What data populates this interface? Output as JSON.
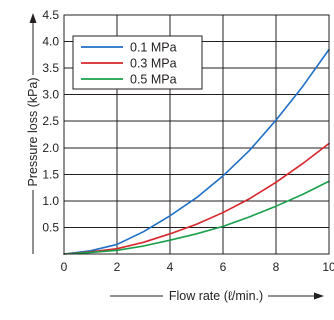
{
  "chart_data": {
    "type": "line",
    "xlabel": "Flow rate (ℓ/min.)",
    "ylabel": "Pressure loss (kPa)",
    "xlim": [
      0,
      10
    ],
    "ylim": [
      0,
      4.5
    ],
    "x_ticks": [
      0,
      2,
      4,
      6,
      8,
      10
    ],
    "x_tick_labels": [
      "0",
      "2",
      "4",
      "6",
      "8",
      "10"
    ],
    "y_ticks": [
      0.5,
      1.0,
      1.5,
      2.0,
      2.5,
      3.0,
      3.5,
      4.0,
      4.5
    ],
    "y_tick_labels": [
      "0.5",
      "1.0",
      "1.5",
      "2.0",
      "2.5",
      "3.0",
      "3.5",
      "4.0",
      "4.5"
    ],
    "grid": true,
    "legend_position": "top-left",
    "series": [
      {
        "name": "0.1 MPa",
        "color": "#1f6fc5",
        "x": [
          0,
          1,
          2,
          3,
          4,
          5,
          6,
          7,
          8,
          9,
          10
        ],
        "y": [
          0,
          0.06,
          0.18,
          0.42,
          0.72,
          1.06,
          1.47,
          1.95,
          2.52,
          3.15,
          3.85
        ]
      },
      {
        "name": "0.3 MPa",
        "color": "#d7262c",
        "x": [
          0,
          1,
          2,
          3,
          4,
          5,
          6,
          7,
          8,
          9,
          10
        ],
        "y": [
          0,
          0.04,
          0.1,
          0.22,
          0.38,
          0.56,
          0.78,
          1.04,
          1.35,
          1.7,
          2.08
        ]
      },
      {
        "name": "0.5 MPa",
        "color": "#1aa04b",
        "x": [
          0,
          1,
          2,
          3,
          4,
          5,
          6,
          7,
          8,
          9,
          10
        ],
        "y": [
          0,
          0.03,
          0.07,
          0.15,
          0.26,
          0.38,
          0.52,
          0.7,
          0.9,
          1.12,
          1.37
        ]
      }
    ]
  }
}
